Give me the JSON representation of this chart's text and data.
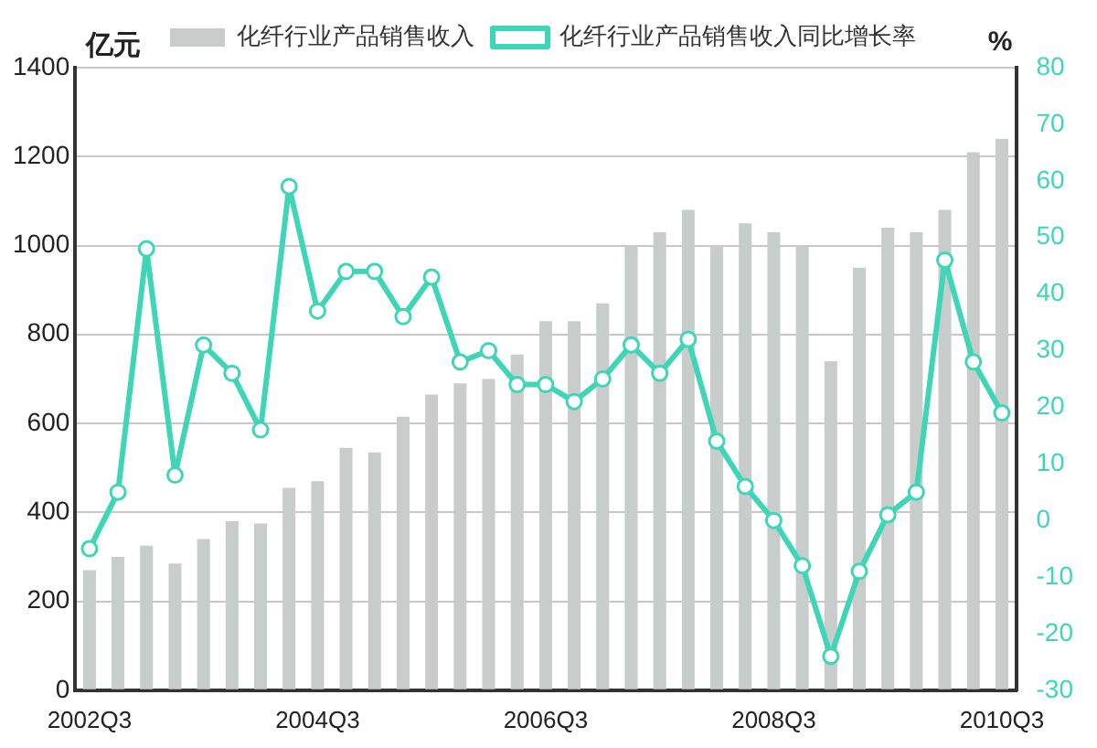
{
  "chart_data": {
    "type": "bar",
    "ylabel": "亿元",
    "y2label": "%",
    "categories": [
      "2002Q3",
      null,
      null,
      null,
      null,
      null,
      null,
      null,
      "2004Q3",
      null,
      null,
      null,
      null,
      null,
      null,
      null,
      "2006Q3",
      null,
      null,
      null,
      null,
      null,
      null,
      null,
      "2008Q3",
      null,
      null,
      null,
      null,
      null,
      null,
      null,
      "2010Q3"
    ],
    "series": [
      {
        "name": "化纤行业产品销售收入",
        "color": "#c8cccb",
        "values": [
          270,
          300,
          325,
          285,
          340,
          380,
          375,
          455,
          470,
          545,
          535,
          615,
          665,
          690,
          700,
          755,
          830,
          830,
          870,
          1000,
          1030,
          1080,
          1000,
          1050,
          1030,
          1000,
          740,
          950,
          1040,
          1030,
          1080,
          1210,
          1240
        ]
      },
      {
        "name": "化纤行业产品销售收入同比增长率",
        "type": "line",
        "axis": "y2",
        "color": "#3fd6b8",
        "values": [
          -5,
          5,
          48,
          8,
          31,
          26,
          16,
          59,
          37,
          44,
          44,
          36,
          43,
          28,
          30,
          24,
          24,
          21,
          25,
          31,
          26,
          32,
          14,
          6,
          0,
          -8,
          -24,
          -9,
          1,
          5,
          46,
          28,
          19
        ]
      }
    ],
    "ylim": [
      0,
      1400
    ],
    "yticks": [
      0,
      200,
      400,
      600,
      800,
      1000,
      1200,
      1400
    ],
    "y2lim": [
      -30,
      80
    ],
    "y2ticks": [
      -30,
      -20,
      -10,
      0,
      10,
      20,
      30,
      40,
      50,
      60,
      70,
      80
    ],
    "grid": "y",
    "legend": "top",
    "marker": "circle",
    "line_style": "solid"
  }
}
